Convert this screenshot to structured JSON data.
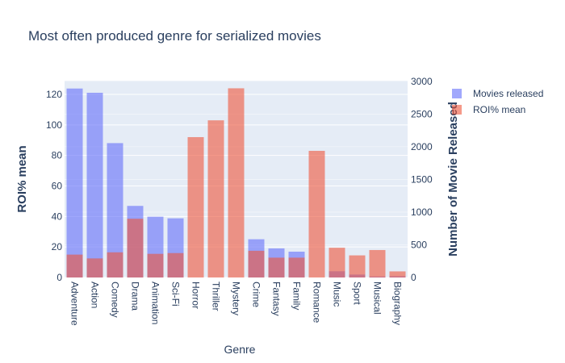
{
  "chart_data": {
    "type": "bar",
    "title": "Most often produced genre for serialized movies",
    "xlabel": "Genre",
    "ylabel_left": "ROI% mean",
    "ylabel_right": "Number of Movie Released",
    "categories": [
      "Adventure",
      "Action",
      "Comedy",
      "Drama",
      "Animation",
      "Sci-Fi",
      "Horror",
      "Thriller",
      "Mystery",
      "Crime",
      "Fantasy",
      "Family",
      "Romance",
      "Music",
      "Sport",
      "Musical",
      "Biography"
    ],
    "series": [
      {
        "name": "Movies released",
        "axis": "right",
        "color": "#636efa",
        "values": [
          2890,
          2825,
          2055,
          1095,
          930,
          905,
          0,
          0,
          0,
          585,
          445,
          395,
          0,
          95,
          45,
          15,
          20
        ]
      },
      {
        "name": "ROI% mean",
        "axis": "left",
        "color": "#ef553b",
        "values": [
          15,
          12.5,
          16.5,
          38.5,
          15.5,
          16,
          92,
          103,
          124,
          17.5,
          13,
          13,
          83,
          19.5,
          14.5,
          18,
          4
        ]
      }
    ],
    "ylim_left": [
      0,
      129
    ],
    "yticks_left": [
      0,
      20,
      40,
      60,
      80,
      100,
      120
    ],
    "ylim_right": [
      0,
      3010
    ],
    "yticks_right": [
      0,
      500,
      1000,
      1500,
      2000,
      2500,
      3000
    ],
    "bar_opacity": 0.6,
    "grid": true,
    "legend_position": "top-right",
    "plot_background": "#e5ecf6"
  }
}
